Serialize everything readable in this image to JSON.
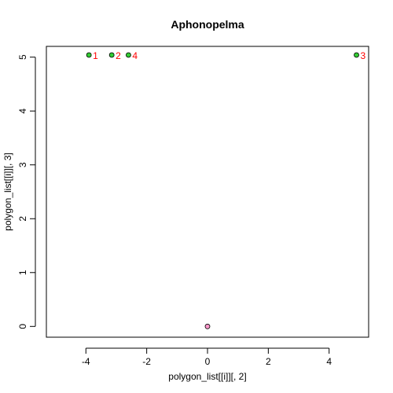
{
  "chart_data": {
    "type": "scatter",
    "title": "Aphonopelma",
    "xlabel": "polygon_list[[i]][, 2]",
    "ylabel": "polygon_list[[i]][, 3]",
    "xlim": [
      -5.3,
      5.3
    ],
    "ylim": [
      -0.2,
      5.2
    ],
    "xticks": [
      -4,
      -2,
      0,
      2,
      4
    ],
    "yticks": [
      0,
      1,
      2,
      3,
      4,
      5
    ],
    "grid": false,
    "series": [
      {
        "points": [
          {
            "x": -3.9,
            "y": 5.04,
            "label": "1"
          },
          {
            "x": -3.15,
            "y": 5.04,
            "label": "2"
          },
          {
            "x": 4.9,
            "y": 5.04,
            "label": "3"
          },
          {
            "x": -2.6,
            "y": 5.04,
            "label": "4"
          }
        ],
        "color": "#33cc33",
        "label_color": "#ff0000"
      },
      {
        "points": [
          {
            "x": 0,
            "y": 0,
            "label": ""
          }
        ],
        "color": "#ff99cc"
      }
    ]
  }
}
